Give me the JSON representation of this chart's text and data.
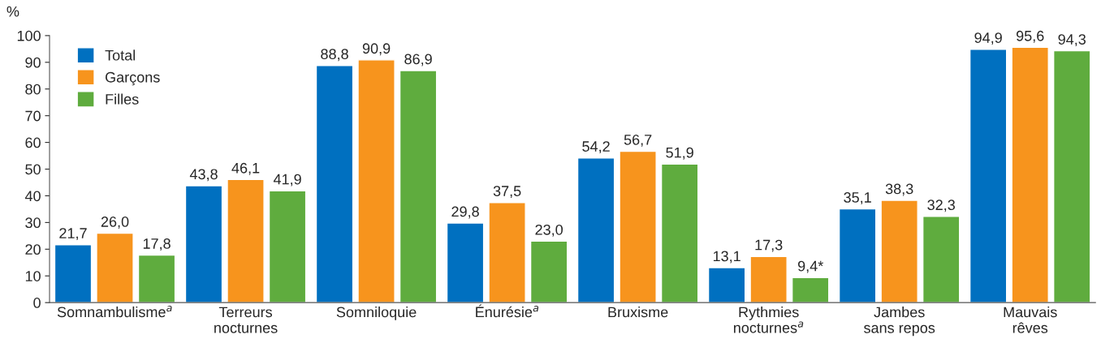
{
  "chart_data": {
    "type": "bar",
    "ylabel": "%",
    "categories": [
      "Somnambulisme$^{a}$",
      "Terreurs\nnocturnes",
      "Somniloquie",
      "Énurésie$^{a}$",
      "Bruxisme",
      "Rythmies\nnocturnes$^{a}$",
      "Jambes\nsans repos",
      "Mauvais\nrêves"
    ],
    "series": [
      {
        "name": "Total",
        "color": "#0070c0",
        "values": [
          21.7,
          43.8,
          88.8,
          29.8,
          54.2,
          13.1,
          35.1,
          94.9
        ],
        "value_labels": [
          "21,7",
          "43,8",
          "88,8",
          "29,8",
          "54,2",
          "13,1",
          "35,1",
          "94,9"
        ]
      },
      {
        "name": "Garçons",
        "color": "#f7941d",
        "values": [
          26.0,
          46.1,
          90.9,
          37.5,
          56.7,
          17.3,
          38.3,
          95.6
        ],
        "value_labels": [
          "26,0",
          "46,1",
          "90,9",
          "37,5",
          "56,7",
          "17,3",
          "38,3",
          "95,6"
        ]
      },
      {
        "name": "Filles",
        "color": "#5fac3e",
        "values": [
          17.8,
          41.9,
          86.9,
          23.0,
          51.9,
          9.4,
          32.3,
          94.3
        ],
        "value_labels": [
          "17,8",
          "41,9",
          "86,9",
          "23,0",
          "51,9",
          "9,4*",
          "32,3",
          "94,3"
        ]
      }
    ],
    "ylim": [
      0,
      100
    ],
    "yticks": [
      0,
      10,
      20,
      30,
      40,
      50,
      60,
      70,
      80,
      90,
      100
    ],
    "grid": false,
    "legend": "top left"
  }
}
